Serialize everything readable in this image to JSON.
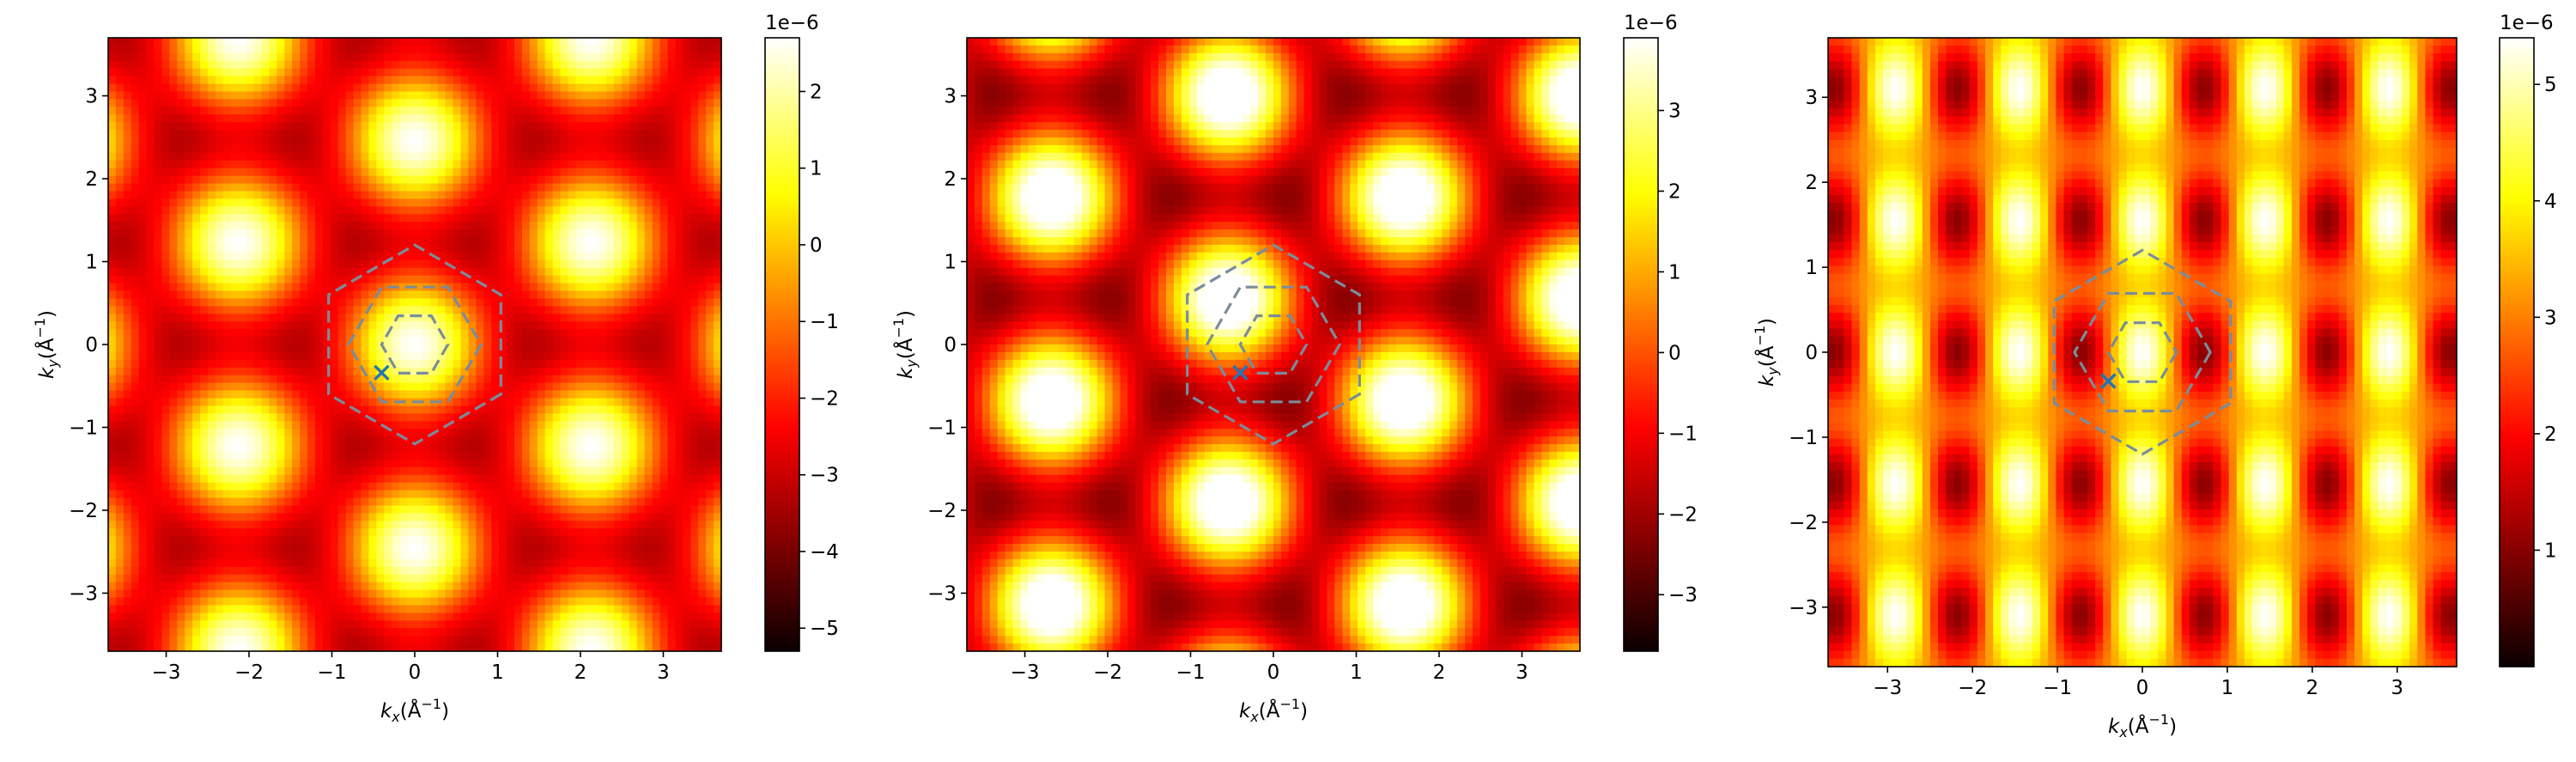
{
  "chart_data": [
    {
      "type": "heatmap",
      "panel": 1,
      "colormap": "hot",
      "title": "",
      "xlabel": "k_x(Å^-1)",
      "ylabel": "k_y(Å^-1)",
      "xlim": [
        -3.7,
        3.7
      ],
      "ylim": [
        -3.7,
        3.7
      ],
      "xticks": [
        -3,
        -2,
        -1,
        0,
        1,
        2,
        3
      ],
      "yticks": [
        -3,
        -2,
        -1,
        0,
        1,
        2,
        3
      ],
      "xtick_labels": [
        "−3",
        "−2",
        "−1",
        "0",
        "1",
        "2",
        "3"
      ],
      "ytick_labels": [
        "−3",
        "−2",
        "−1",
        "0",
        "1",
        "2",
        "3"
      ],
      "colorbar": {
        "offset_label": "1e−6",
        "vmin": -5.3,
        "vmax": 2.7,
        "ticks": [
          -5,
          -4,
          -3,
          -2,
          -1,
          0,
          1,
          2
        ],
        "tick_labels": [
          "−5",
          "−4",
          "−3",
          "−2",
          "−1",
          "0",
          "1",
          "2"
        ]
      },
      "pattern": {
        "kind": "triangular",
        "offset": -1.3,
        "amplitude": 2.0
      },
      "hexagons": [
        {
          "radius": 1.2,
          "orientation": "pointy"
        },
        {
          "radius": 0.8,
          "orientation": "flat"
        },
        {
          "radius": 0.4,
          "orientation": "flat"
        }
      ],
      "marker": {
        "symbol": "x",
        "x": -0.4,
        "y": -0.34
      },
      "grid": false
    },
    {
      "type": "heatmap",
      "panel": 2,
      "colormap": "hot",
      "title": "",
      "xlabel": "k_x(Å^-1)",
      "ylabel": "k_y(Å^-1)",
      "xlim": [
        -3.7,
        3.7
      ],
      "ylim": [
        -3.7,
        3.7
      ],
      "xticks": [
        -3,
        -2,
        -1,
        0,
        1,
        2,
        3
      ],
      "yticks": [
        -3,
        -2,
        -1,
        0,
        1,
        2,
        3
      ],
      "xtick_labels": [
        "−3",
        "−2",
        "−1",
        "0",
        "1",
        "2",
        "3"
      ],
      "ytick_labels": [
        "−3",
        "−2",
        "−1",
        "0",
        "1",
        "2",
        "3"
      ],
      "colorbar": {
        "offset_label": "1e−6",
        "vmin": -3.7,
        "vmax": 3.9,
        "ticks": [
          -3,
          -2,
          -1,
          0,
          1,
          2,
          3
        ],
        "tick_labels": [
          "−3",
          "−2",
          "−1",
          "0",
          "1",
          "2",
          "3"
        ]
      },
      "pattern": {
        "kind": "triangular_shifted",
        "offset": 0.1,
        "amplitude": 2.4
      },
      "hexagons": [
        {
          "radius": 1.2,
          "orientation": "pointy"
        },
        {
          "radius": 0.8,
          "orientation": "flat"
        },
        {
          "radius": 0.4,
          "orientation": "flat"
        }
      ],
      "marker": {
        "symbol": "x",
        "x": -0.4,
        "y": -0.34
      },
      "grid": false
    },
    {
      "type": "heatmap",
      "panel": 3,
      "colormap": "hot",
      "title": "",
      "xlabel": "k_x(Å^-1)",
      "ylabel": "k_y(Å^-1)",
      "xlim": [
        -3.7,
        3.7
      ],
      "ylim": [
        -3.7,
        3.7
      ],
      "xticks": [
        -3,
        -2,
        -1,
        0,
        1,
        2,
        3
      ],
      "yticks": [
        -3,
        -2,
        -1,
        0,
        1,
        2,
        3
      ],
      "xtick_labels": [
        "−3",
        "−2",
        "−1",
        "0",
        "1",
        "2",
        "3"
      ],
      "ytick_labels": [
        "−3",
        "−2",
        "−1",
        "0",
        "1",
        "2",
        "3"
      ],
      "colorbar": {
        "offset_label": "1e−6",
        "vmin": 0.0,
        "vmax": 5.4,
        "ticks": [
          1,
          2,
          3,
          4,
          5
        ],
        "tick_labels": [
          "1",
          "2",
          "3",
          "4",
          "5"
        ]
      },
      "pattern": {
        "kind": "stripes",
        "offset": 3.2,
        "amplitude": 2.2
      },
      "hexagons": [
        {
          "radius": 1.2,
          "orientation": "pointy"
        },
        {
          "radius": 0.8,
          "orientation": "flat"
        },
        {
          "radius": 0.4,
          "orientation": "flat"
        }
      ],
      "marker": {
        "symbol": "x",
        "x": -0.4,
        "y": -0.34
      },
      "grid": false
    }
  ]
}
